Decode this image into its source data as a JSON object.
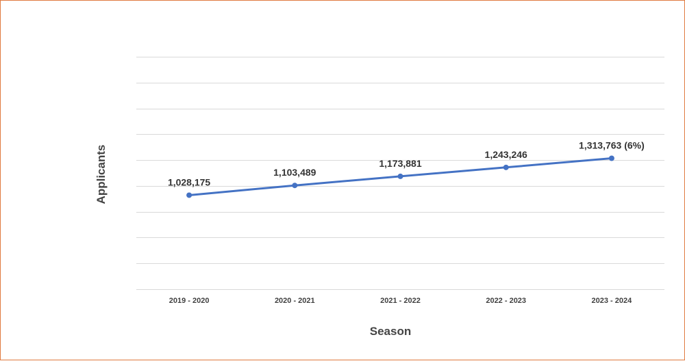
{
  "chart_data": {
    "type": "line",
    "categories": [
      "2019 - 2020",
      "2020 - 2021",
      "2021 - 2022",
      "2022 - 2023",
      "2023 - 2024"
    ],
    "values": [
      1028175,
      1103489,
      1173881,
      1243246,
      1313763
    ],
    "data_labels": [
      "1,028,175",
      "1,103,489",
      "1,173,881",
      "1,243,246",
      "1,313,763 (6%)"
    ],
    "title": "",
    "xlabel": "Season",
    "ylabel": "Applicants",
    "ylim": [
      300000,
      2100000
    ],
    "y_tick_step": 200000,
    "y_tick_labels_shown": false,
    "grid": true,
    "legend": "none",
    "series_color": "#4472c4",
    "grid_color": "#d9d9d9"
  }
}
